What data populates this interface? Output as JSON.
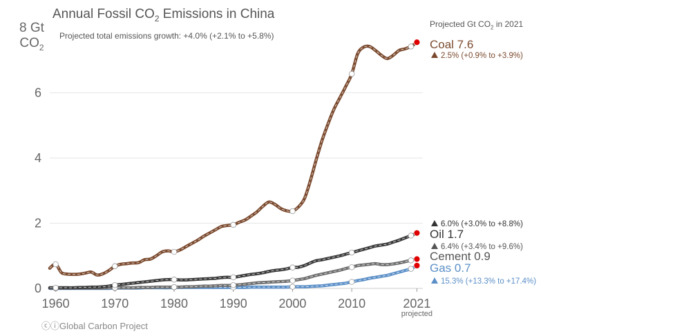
{
  "title": {
    "prefix": "Annual Fossil CO",
    "sub": "2",
    "suffix": " Emissions in China"
  },
  "subtitle": "Projected total emissions growth: +4.0% (+2.1% to +5.8%)",
  "ylabel": {
    "line1": "8 Gt",
    "line2_prefix": "CO",
    "line2_sub": "2"
  },
  "right_header": {
    "prefix": "Projected Gt CO",
    "sub": "2",
    "suffix": " in 2021"
  },
  "credit": "Global Carbon Project",
  "credit_icons": "cc-by-icon",
  "x_note": "projected",
  "colors": {
    "coal": "#7b4a2e",
    "oil": "#3a3a3a",
    "cement": "#6e6e6e",
    "gas": "#5b8fc7",
    "projected_point": "#e00000",
    "grid": "#e6e6e6"
  },
  "chart_data": {
    "type": "line",
    "title": "Annual Fossil CO2 Emissions in China",
    "subtitle": "Projected total emissions growth: +4.0% (+2.1% to +5.8%)",
    "ylabel": "8 Gt CO2",
    "ylim": [
      0,
      8
    ],
    "xlim": [
      1959,
      2022
    ],
    "yticks": [
      "0",
      "2",
      "4",
      "6"
    ],
    "xticks": [
      "1960",
      "1970",
      "1980",
      "1990",
      "2000",
      "2010",
      "2021"
    ],
    "grid": true,
    "x": [
      1959,
      1960,
      1961,
      1962,
      1963,
      1964,
      1965,
      1966,
      1967,
      1968,
      1969,
      1970,
      1971,
      1972,
      1973,
      1974,
      1975,
      1976,
      1977,
      1978,
      1979,
      1980,
      1981,
      1982,
      1983,
      1984,
      1985,
      1986,
      1987,
      1988,
      1989,
      1990,
      1991,
      1992,
      1993,
      1994,
      1995,
      1996,
      1997,
      1998,
      1999,
      2000,
      2001,
      2002,
      2003,
      2004,
      2005,
      2006,
      2007,
      2008,
      2009,
      2010,
      2011,
      2012,
      2013,
      2014,
      2015,
      2016,
      2017,
      2018,
      2019,
      2020,
      2021
    ],
    "series": [
      {
        "name": "Coal",
        "label": "Coal 7.6",
        "growth": "2.5% (+0.9% to +3.9%)",
        "values": [
          0.62,
          0.74,
          0.48,
          0.44,
          0.43,
          0.44,
          0.47,
          0.5,
          0.41,
          0.45,
          0.55,
          0.68,
          0.74,
          0.76,
          0.78,
          0.79,
          0.88,
          0.9,
          1.0,
          1.12,
          1.15,
          1.12,
          1.18,
          1.28,
          1.38,
          1.48,
          1.6,
          1.7,
          1.8,
          1.9,
          1.93,
          1.95,
          2.03,
          2.1,
          2.22,
          2.35,
          2.52,
          2.65,
          2.58,
          2.45,
          2.38,
          2.37,
          2.5,
          2.75,
          3.3,
          3.95,
          4.55,
          5.05,
          5.5,
          5.85,
          6.2,
          6.58,
          7.2,
          7.4,
          7.42,
          7.3,
          7.15,
          7.05,
          7.15,
          7.3,
          7.35,
          7.42,
          7.55
        ]
      },
      {
        "name": "Oil",
        "label": "Oil 1.7",
        "growth": "6.0% (+3.0% to +8.8%)",
        "values": [
          0.02,
          0.02,
          0.02,
          0.02,
          0.02,
          0.03,
          0.03,
          0.04,
          0.04,
          0.05,
          0.07,
          0.1,
          0.12,
          0.14,
          0.16,
          0.18,
          0.2,
          0.22,
          0.24,
          0.26,
          0.27,
          0.27,
          0.26,
          0.26,
          0.27,
          0.28,
          0.29,
          0.3,
          0.31,
          0.33,
          0.34,
          0.34,
          0.37,
          0.4,
          0.43,
          0.45,
          0.48,
          0.52,
          0.55,
          0.57,
          0.6,
          0.64,
          0.65,
          0.7,
          0.78,
          0.85,
          0.88,
          0.92,
          0.96,
          1.0,
          1.05,
          1.1,
          1.15,
          1.2,
          1.25,
          1.3,
          1.33,
          1.36,
          1.42,
          1.48,
          1.55,
          1.62,
          1.7
        ]
      },
      {
        "name": "Cement",
        "label": "Cement 0.9",
        "growth": "6.4% (+3.4% to +9.6%)",
        "values": [
          0.01,
          0.01,
          0.01,
          0.01,
          0.01,
          0.01,
          0.01,
          0.01,
          0.01,
          0.01,
          0.02,
          0.02,
          0.02,
          0.02,
          0.02,
          0.03,
          0.03,
          0.03,
          0.04,
          0.04,
          0.04,
          0.04,
          0.04,
          0.05,
          0.05,
          0.06,
          0.07,
          0.07,
          0.08,
          0.09,
          0.09,
          0.1,
          0.11,
          0.13,
          0.15,
          0.17,
          0.18,
          0.19,
          0.2,
          0.21,
          0.22,
          0.24,
          0.27,
          0.3,
          0.35,
          0.4,
          0.44,
          0.48,
          0.52,
          0.56,
          0.61,
          0.65,
          0.7,
          0.72,
          0.74,
          0.76,
          0.73,
          0.73,
          0.75,
          0.78,
          0.82,
          0.86,
          0.9
        ]
      },
      {
        "name": "Gas",
        "label": "Gas 0.7",
        "growth": "15.3% (+13.3% to +17.4%)",
        "values": [
          0.0,
          0.0,
          0.0,
          0.0,
          0.0,
          0.0,
          0.0,
          0.0,
          0.0,
          0.0,
          0.0,
          0.01,
          0.01,
          0.01,
          0.01,
          0.01,
          0.02,
          0.02,
          0.02,
          0.02,
          0.02,
          0.03,
          0.03,
          0.03,
          0.03,
          0.03,
          0.03,
          0.03,
          0.03,
          0.03,
          0.03,
          0.03,
          0.03,
          0.03,
          0.04,
          0.04,
          0.04,
          0.04,
          0.04,
          0.04,
          0.04,
          0.05,
          0.05,
          0.05,
          0.06,
          0.07,
          0.08,
          0.1,
          0.12,
          0.14,
          0.16,
          0.2,
          0.24,
          0.27,
          0.31,
          0.34,
          0.37,
          0.4,
          0.45,
          0.5,
          0.55,
          0.6,
          0.7
        ]
      }
    ]
  }
}
